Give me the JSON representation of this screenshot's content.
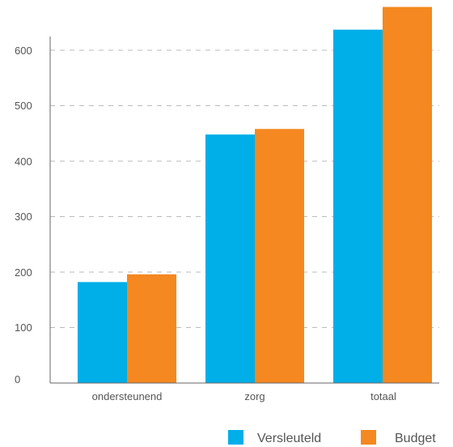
{
  "chart_data": {
    "type": "bar",
    "categories": [
      "ondersteunend",
      "zorg",
      "totaal"
    ],
    "series": [
      {
        "name": "Versleuteld",
        "values": [
          182,
          448,
          637
        ]
      },
      {
        "name": "Budget",
        "values": [
          196,
          458,
          678
        ]
      }
    ],
    "y_ticks": [
      "0",
      "100",
      "200",
      "300",
      "400",
      "500",
      "600"
    ],
    "ylim": [
      0,
      680
    ],
    "grid": "horizontal dashed",
    "legend_position": "bottom-right",
    "colors": {
      "Versleuteld": "#00aee8",
      "Budget": "#f58820",
      "grid": "#bbbbbb",
      "axis": "#666666"
    }
  }
}
